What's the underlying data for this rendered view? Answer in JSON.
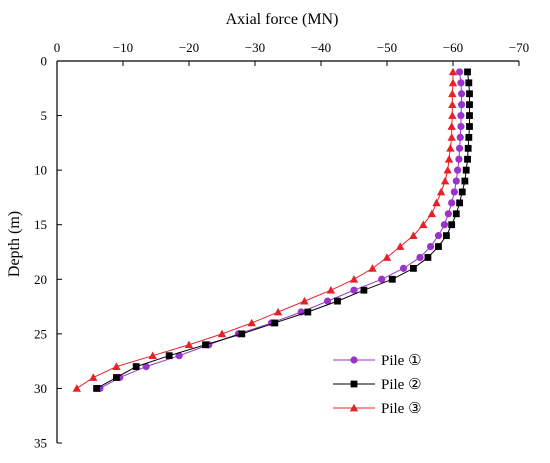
{
  "chart_data": {
    "type": "line",
    "xlabel": "Axial force (MN)",
    "ylabel": "Depth (m)",
    "xlim": [
      0,
      -70
    ],
    "ylim": [
      0,
      35
    ],
    "x_ticks": [
      0,
      -10,
      -20,
      -30,
      -40,
      -50,
      -60,
      -70
    ],
    "y_ticks": [
      0,
      5,
      10,
      15,
      20,
      25,
      30,
      35
    ],
    "x_axis_position": "top",
    "y_axis_reversed": true,
    "grid": false,
    "legend_position": "bottom-right",
    "series": [
      {
        "name": "Pile ①",
        "color": "#9933cc",
        "marker": "circle",
        "points": [
          [
            -61.0,
            1
          ],
          [
            -61.2,
            2
          ],
          [
            -61.3,
            3
          ],
          [
            -61.3,
            4
          ],
          [
            -61.2,
            5
          ],
          [
            -61.2,
            6
          ],
          [
            -61.1,
            7
          ],
          [
            -61.0,
            8
          ],
          [
            -60.9,
            9
          ],
          [
            -60.7,
            10
          ],
          [
            -60.5,
            11
          ],
          [
            -60.2,
            12
          ],
          [
            -59.8,
            13
          ],
          [
            -59.3,
            14
          ],
          [
            -58.7,
            15
          ],
          [
            -57.8,
            16
          ],
          [
            -56.6,
            17
          ],
          [
            -55.0,
            18
          ],
          [
            -52.5,
            19
          ],
          [
            -49.2,
            20
          ],
          [
            -45.0,
            21
          ],
          [
            -41.0,
            22
          ],
          [
            -37.0,
            23
          ],
          [
            -32.5,
            24
          ],
          [
            -27.5,
            25
          ],
          [
            -23.0,
            26
          ],
          [
            -18.5,
            27
          ],
          [
            -13.5,
            28
          ],
          [
            -9.5,
            29
          ],
          [
            -6.5,
            30
          ]
        ]
      },
      {
        "name": "Pile ②",
        "color": "#000000",
        "marker": "square",
        "points": [
          [
            -62.2,
            1
          ],
          [
            -62.4,
            2
          ],
          [
            -62.5,
            3
          ],
          [
            -62.5,
            4
          ],
          [
            -62.5,
            5
          ],
          [
            -62.5,
            6
          ],
          [
            -62.4,
            7
          ],
          [
            -62.3,
            8
          ],
          [
            -62.2,
            9
          ],
          [
            -62.0,
            10
          ],
          [
            -61.8,
            11
          ],
          [
            -61.4,
            12
          ],
          [
            -61.0,
            13
          ],
          [
            -60.5,
            14
          ],
          [
            -59.8,
            15
          ],
          [
            -59.0,
            16
          ],
          [
            -57.8,
            17
          ],
          [
            -56.2,
            18
          ],
          [
            -54.0,
            19
          ],
          [
            -50.8,
            20
          ],
          [
            -46.5,
            21
          ],
          [
            -42.5,
            22
          ],
          [
            -38.0,
            23
          ],
          [
            -33.0,
            24
          ],
          [
            -28.0,
            25
          ],
          [
            -22.5,
            26
          ],
          [
            -17.0,
            27
          ],
          [
            -12.0,
            28
          ],
          [
            -9.0,
            29
          ],
          [
            -6.0,
            30
          ]
        ]
      },
      {
        "name": "Pile ③",
        "color": "#e8202a",
        "marker": "triangle",
        "points": [
          [
            -60.0,
            1
          ],
          [
            -60.0,
            2
          ],
          [
            -59.9,
            3
          ],
          [
            -59.9,
            4
          ],
          [
            -59.9,
            5
          ],
          [
            -59.8,
            6
          ],
          [
            -59.8,
            7
          ],
          [
            -59.6,
            8
          ],
          [
            -59.4,
            9
          ],
          [
            -59.2,
            10
          ],
          [
            -58.8,
            11
          ],
          [
            -58.2,
            12
          ],
          [
            -57.5,
            13
          ],
          [
            -56.8,
            14
          ],
          [
            -55.5,
            15
          ],
          [
            -54.0,
            16
          ],
          [
            -52.0,
            17
          ],
          [
            -50.0,
            18
          ],
          [
            -47.8,
            19
          ],
          [
            -45.0,
            20
          ],
          [
            -41.5,
            21
          ],
          [
            -37.5,
            22
          ],
          [
            -33.5,
            23
          ],
          [
            -29.5,
            24
          ],
          [
            -25.0,
            25
          ],
          [
            -20.0,
            26
          ],
          [
            -14.5,
            27
          ],
          [
            -9.0,
            28
          ],
          [
            -5.5,
            29
          ],
          [
            -3.0,
            30
          ]
        ]
      }
    ]
  }
}
